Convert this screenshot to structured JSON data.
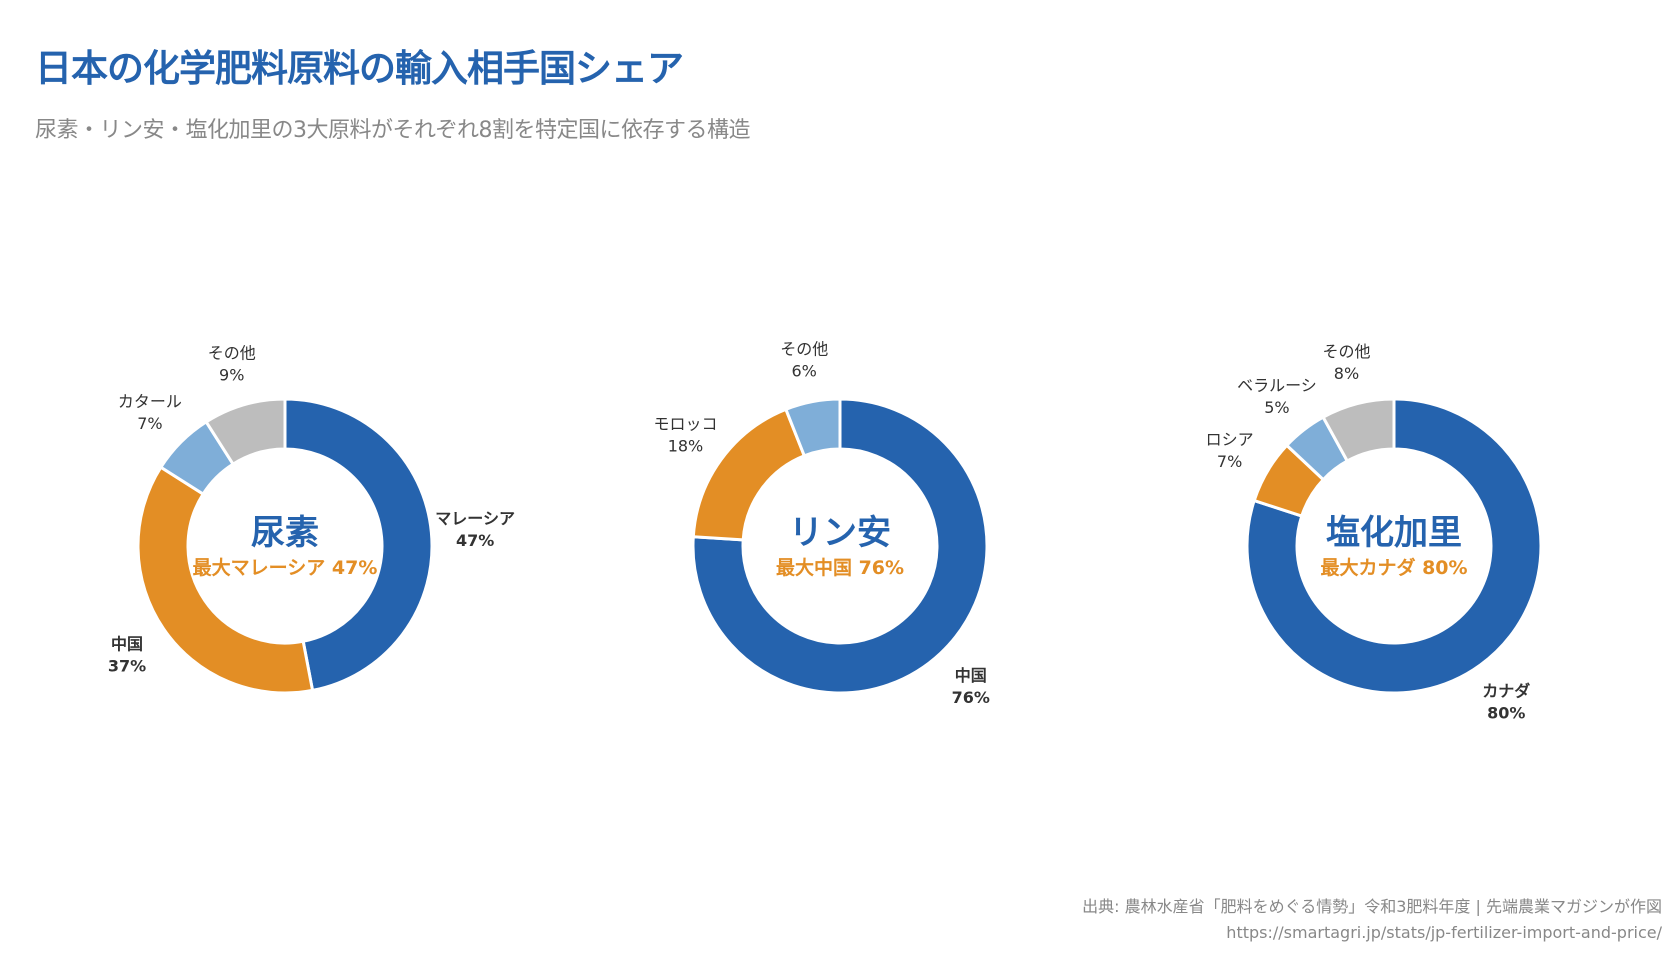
{
  "title": "日本の化学肥料原料の輸入相手国シェア",
  "subtitle": "尿素・リン安・塩化加里の3大原料がそれぞれ8割を特定国に依存する構造",
  "source": {
    "line1": "出典: 農林水産省「肥料をめぐる情勢」令和3肥料年度 | 先端農業マガジンが作図",
    "line2": "https://smartagri.jp/stats/jp-fertilizer-import-and-price/"
  },
  "colors": [
    "#2563ae",
    "#e38e25",
    "#7faed8",
    "#bdbdbd"
  ],
  "chart_data": [
    {
      "type": "pie",
      "variant": "donut",
      "center_title": "尿素",
      "center_subtitle": "最大マレーシア 47%",
      "slices": [
        {
          "label": "マレーシア",
          "value": 47
        },
        {
          "label": "中国",
          "value": 37
        },
        {
          "label": "カタール",
          "value": 7
        },
        {
          "label": "その他",
          "value": 9
        }
      ]
    },
    {
      "type": "pie",
      "variant": "donut",
      "center_title": "リン安",
      "center_subtitle": "最大中国 76%",
      "slices": [
        {
          "label": "中国",
          "value": 76
        },
        {
          "label": "モロッコ",
          "value": 18
        },
        {
          "label": "その他",
          "value": 6
        }
      ]
    },
    {
      "type": "pie",
      "variant": "donut",
      "center_title": "塩化加里",
      "center_subtitle": "最大カナダ 80%",
      "slices": [
        {
          "label": "カナダ",
          "value": 80
        },
        {
          "label": "ロシア",
          "value": 7
        },
        {
          "label": "ベラルーシ",
          "value": 5
        },
        {
          "label": "その他",
          "value": 8
        }
      ]
    }
  ]
}
